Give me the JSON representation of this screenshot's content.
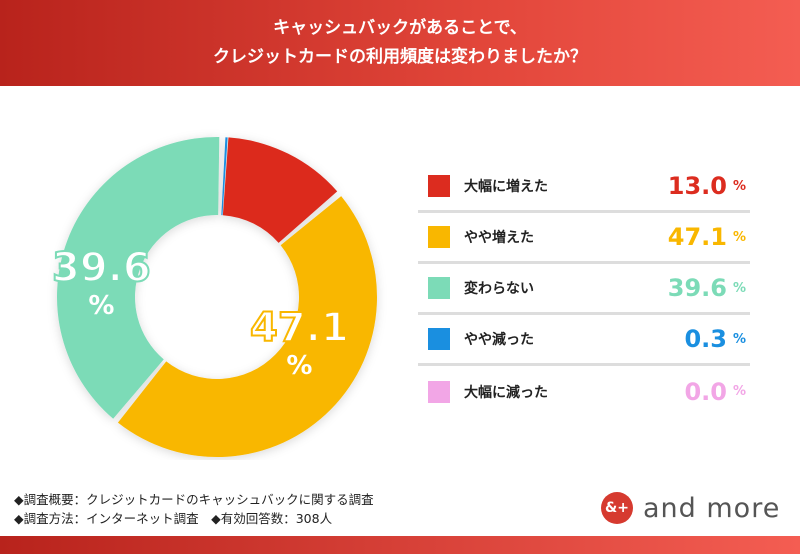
{
  "header": {
    "title_line1": "キャッシュバックがあることで、",
    "title_line2": "クレジットカードの利用頻度は変わりましたか？"
  },
  "chart_data": {
    "type": "pie",
    "title": "キャッシュバックがあることで、クレジットカードの利用頻度は変わりましたか？",
    "categories": [
      "大幅に増えた",
      "やや増えた",
      "変わらない",
      "やや減った",
      "大幅に減った"
    ],
    "values": [
      13.0,
      47.1,
      39.6,
      0.3,
      0.0
    ],
    "colors": [
      "#dc2c1f",
      "#f9b700",
      "#7cdbb7",
      "#1a8fe0",
      "#f2a6e6"
    ],
    "unit": "%",
    "donut_labels": [
      {
        "value": "47.1",
        "unit": "%",
        "index": 1
      },
      {
        "value": "39.6",
        "unit": "%",
        "index": 2
      }
    ],
    "legend_placement": "right"
  },
  "notes": {
    "line1": "◆調査概要：クレジットカードのキャッシュバックに関する調査",
    "line2": "◆調査方法：インターネット調査　◆有効回答数：308人"
  },
  "logo": {
    "mark": "&+",
    "text": "and more"
  }
}
